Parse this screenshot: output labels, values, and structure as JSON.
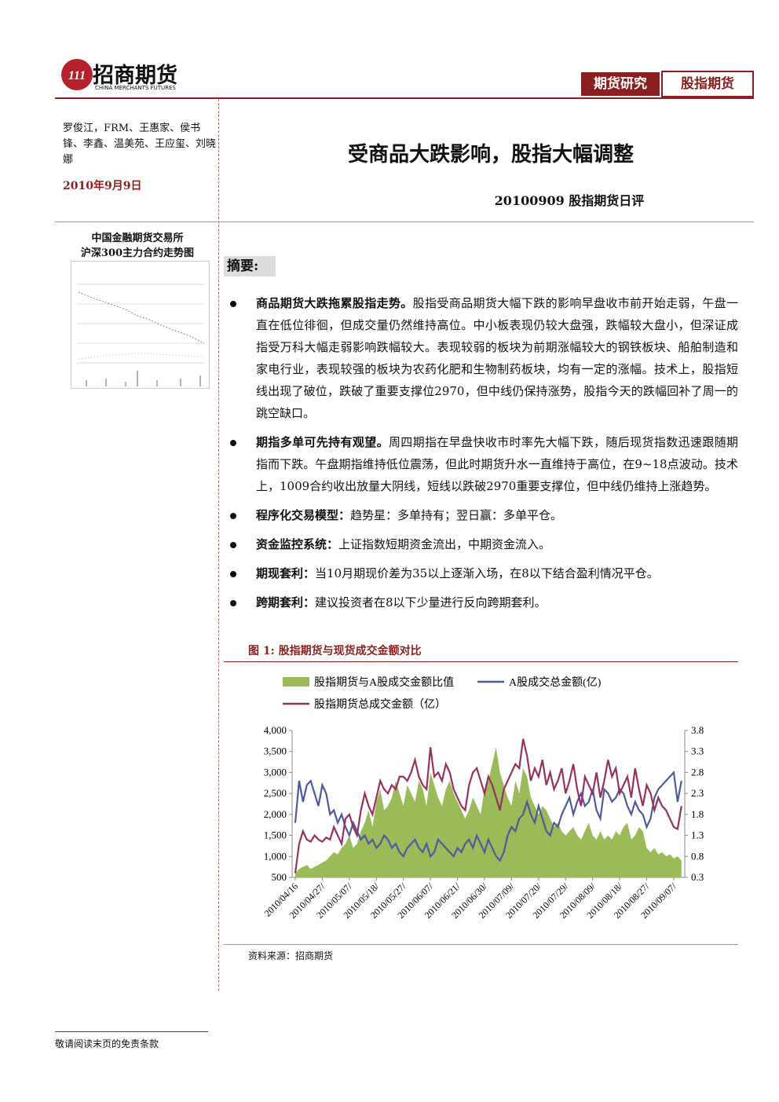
{
  "header": {
    "brand": "招商期货",
    "brand_en": "CHINA MERCHANTS FUTURES",
    "tags": [
      "期货研究",
      "股指期货"
    ]
  },
  "sidebar": {
    "authors": "罗俊江，FRM、王惠家、侯书锋、李鑫、温美苑、王应玺、刘晓娜",
    "date": "2010年9月9日",
    "chart_caption": [
      "中国金融期货交易所",
      "沪深300主力合约走势图"
    ]
  },
  "title": "受商品大跌影响，股指大幅调整",
  "subtitle": "20100909 股指期货日评",
  "summary": {
    "heading": "摘要:",
    "items": [
      {
        "lead": "商品期货大跌拖累股指走势。",
        "text": "股指受商品期货大幅下跌的影响早盘收市前开始走弱，午盘一直在低位徘徊，但成交量仍然维持高位。中小板表现仍较大盘强，跌幅较大盘小，但深证成指受万科大幅走弱影响跌幅较大。表现较弱的板块为前期涨幅较大的钢铁板块、船舶制造和家电行业，表现较强的板块为农药化肥和生物制药板块，均有一定的涨幅。技术上，股指短线出现了破位，跌破了重要支撑位2970，但中线仍保持涨势，股指今天的跌幅回补了周一的跳空缺口。"
      },
      {
        "lead": "期指多单可先持有观望。",
        "text": "周四期指在早盘快收市时率先大幅下跌，随后现货指数迅速跟随期指而下跌。午盘期指维持低位震荡，但此时期货升水一直维持于高位，在9~18点波动。技术上，1009合约收出放量大阴线，短线以跌破2970重要支撑位，但中线仍维持上涨趋势。"
      },
      {
        "lead": "程序化交易模型：",
        "text": "趋势星：多单持有；翌日赢：多单平仓。"
      },
      {
        "lead": "资金监控系统：",
        "text": "上证指数短期资金流出，中期资金流入。"
      },
      {
        "lead": "期现套利：",
        "text": "当10月期现价差为35以上逐渐入场，在8以下结合盈利情况平仓。"
      },
      {
        "lead": "跨期套利：",
        "text": "建议投资者在8以下少量进行反向跨期套利。"
      }
    ]
  },
  "figure": {
    "title": "图 1: 股指期货与现货成交金额对比",
    "source": "资料来源：招商期货"
  },
  "footer": "敬请阅读末页的免责条款",
  "chart_data": {
    "type": "combo",
    "categories": [
      "2010/04/16",
      null,
      null,
      null,
      null,
      null,
      null,
      "2010/04/27/",
      null,
      null,
      null,
      null,
      null,
      null,
      "2010/05/07/",
      null,
      null,
      null,
      null,
      null,
      null,
      "2010/05/18/",
      null,
      null,
      null,
      null,
      null,
      null,
      "2010/05/27/",
      null,
      null,
      null,
      null,
      null,
      null,
      "2010/06/07/",
      null,
      null,
      null,
      null,
      null,
      null,
      "2010/06/21/",
      null,
      null,
      null,
      null,
      null,
      null,
      "2010/06/30/",
      null,
      null,
      null,
      null,
      null,
      null,
      "2010/07/09/",
      null,
      null,
      null,
      null,
      null,
      null,
      "2010/07/20/",
      null,
      null,
      null,
      null,
      null,
      null,
      "2010/07/29/",
      null,
      null,
      null,
      null,
      null,
      null,
      "2010/08/09/",
      null,
      null,
      null,
      null,
      null,
      null,
      "2010/08/18/",
      null,
      null,
      null,
      null,
      null,
      null,
      "2010/08/27/",
      null,
      null,
      null,
      null,
      null,
      null,
      "2010/09/07/",
      null,
      null
    ],
    "series": [
      {
        "name": "股指期货与A股成交金额比值",
        "color": "#9bbb59",
        "kind": "area",
        "axis": "y2",
        "values": [
          0.4,
          0.5,
          0.55,
          0.6,
          0.5,
          0.55,
          0.6,
          0.65,
          0.7,
          0.8,
          0.9,
          0.85,
          1.0,
          1.1,
          1.3,
          1.0,
          1.1,
          1.4,
          1.6,
          1.9,
          1.5,
          2.1,
          2.4,
          1.9,
          2.0,
          2.2,
          2.6,
          2.3,
          2.0,
          2.5,
          2.3,
          2.1,
          2.6,
          2.4,
          2.0,
          2.8,
          2.5,
          2.2,
          2.0,
          2.4,
          2.6,
          2.3,
          2.1,
          1.9,
          1.7,
          1.9,
          2.2,
          2.0,
          1.8,
          2.4,
          2.6,
          3.0,
          3.4,
          2.8,
          2.5,
          2.2,
          2.0,
          2.6,
          2.3,
          2.9,
          2.7,
          2.2,
          2.0,
          1.8,
          2.0,
          1.9,
          1.7,
          1.5,
          1.6,
          1.4,
          1.3,
          1.4,
          1.5,
          1.3,
          1.2,
          1.4,
          1.6,
          1.3,
          1.2,
          1.4,
          1.2,
          1.3,
          1.2,
          1.4,
          1.3,
          1.5,
          1.6,
          1.2,
          1.3,
          1.5,
          1.4,
          1.0,
          0.9,
          1.0,
          0.85,
          0.9,
          0.8,
          0.85,
          0.75,
          0.8,
          0.7
        ]
      },
      {
        "name": "A股成交总金额(亿)",
        "color": "#4f5a9c",
        "kind": "line",
        "values": [
          1800,
          2800,
          2300,
          2700,
          2800,
          2500,
          2200,
          2700,
          2500,
          2000,
          2100,
          1800,
          2000,
          1700,
          1500,
          1800,
          1600,
          1400,
          1500,
          1300,
          1400,
          1200,
          1300,
          1500,
          1400,
          1200,
          1300,
          1100,
          1000,
          1200,
          1300,
          1400,
          1200,
          1100,
          1300,
          1000,
          1100,
          1400,
          1300,
          1200,
          1100,
          1000,
          1200,
          1100,
          1300,
          1400,
          1200,
          1500,
          1300,
          1100,
          1400,
          1200,
          1000,
          900,
          1100,
          1500,
          1700,
          1600,
          1900,
          2000,
          2300,
          2000,
          1800,
          2200,
          1900,
          1600,
          1500,
          1800,
          1700,
          2000,
          2200,
          2400,
          2000,
          2300,
          2500,
          2200,
          2300,
          2600,
          2100,
          1900,
          2600,
          2500,
          2300,
          2400,
          2600,
          2500,
          2200,
          2000,
          2300,
          2100,
          2000,
          1700,
          1900,
          2400,
          2600,
          2700,
          2800,
          2900,
          3000,
          2300,
          2800
        ]
      },
      {
        "name": "股指期货总成交金额（亿）",
        "color": "#98305f",
        "kind": "line",
        "values": [
          600,
          1300,
          1600,
          1400,
          1350,
          1500,
          1400,
          1350,
          1450,
          1400,
          1700,
          1500,
          1300,
          1900,
          2000,
          1700,
          1500,
          2100,
          2500,
          2200,
          2000,
          2400,
          2800,
          2600,
          2500,
          2700,
          2600,
          2900,
          2900,
          2800,
          3000,
          3300,
          2900,
          2700,
          2600,
          3600,
          2900,
          3000,
          2800,
          3200,
          3000,
          2600,
          2400,
          2200,
          2100,
          2700,
          3000,
          3100,
          2800,
          2500,
          2900,
          2700,
          2400,
          2100,
          2600,
          2800,
          3000,
          3200,
          3100,
          3800,
          3400,
          2800,
          3100,
          2900,
          3300,
          2700,
          3000,
          2600,
          2800,
          3100,
          2500,
          2800,
          3200,
          2600,
          2200,
          2900,
          2700,
          2500,
          3000,
          2400,
          2800,
          3300,
          2900,
          3100,
          2500,
          2700,
          2900,
          2400,
          3100,
          2600,
          2200,
          2700,
          2500,
          2100,
          2400,
          2200,
          2100,
          1900,
          1700,
          1650,
          2200
        ]
      }
    ],
    "ylim": [
      500,
      4000
    ],
    "yticks": [
      {
        "value": 500,
        "label": "500"
      },
      {
        "value": 1000,
        "label": "1,000"
      },
      {
        "value": 1500,
        "label": "1,500"
      },
      {
        "value": 2000,
        "label": "2,000"
      },
      {
        "value": 2500,
        "label": "2,500"
      },
      {
        "value": 3000,
        "label": "3,000"
      },
      {
        "value": 3500,
        "label": "3,500"
      },
      {
        "value": 4000,
        "label": "4,000"
      }
    ],
    "y2lim": [
      0.3,
      3.8
    ],
    "y2ticks": [
      0.3,
      0.8,
      1.3,
      1.8,
      2.3,
      2.8,
      3.3,
      3.8
    ]
  }
}
